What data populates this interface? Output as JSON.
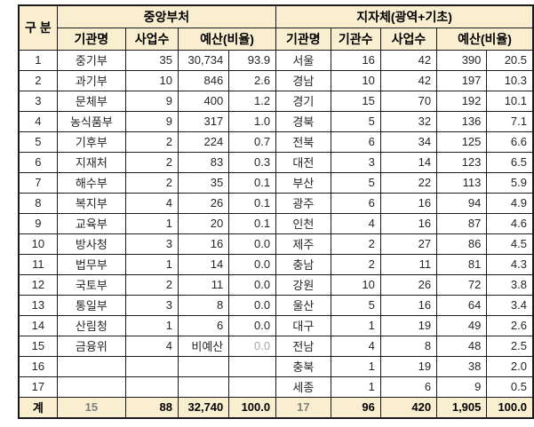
{
  "table": {
    "corner_header": "구 분",
    "group_left": {
      "label": "중앙부처"
    },
    "group_right": {
      "label": "지자체(광역+기초)"
    },
    "sub_header_row": [
      "기관명",
      "사업수",
      "예산(비율)",
      "기관명",
      "기관수",
      "사업수",
      "예산(비율)"
    ],
    "col_align": [
      "center",
      "center",
      "right",
      "right",
      "right",
      "center",
      "right",
      "right",
      "right",
      "right"
    ],
    "rows": [
      [
        "1",
        "중기부",
        "35",
        "30,734",
        "93.9",
        "서울",
        "16",
        "42",
        "390",
        "20.5"
      ],
      [
        "2",
        "과기부",
        "10",
        "846",
        "2.6",
        "경남",
        "10",
        "42",
        "197",
        "10.3"
      ],
      [
        "3",
        "문체부",
        "9",
        "400",
        "1.2",
        "경기",
        "15",
        "70",
        "192",
        "10.1"
      ],
      [
        "4",
        "농식품부",
        "9",
        "317",
        "1.0",
        "경북",
        "5",
        "32",
        "136",
        "7.1"
      ],
      [
        "5",
        "기후부",
        "2",
        "224",
        "0.7",
        "전북",
        "6",
        "34",
        "125",
        "6.6"
      ],
      [
        "6",
        "지재처",
        "2",
        "83",
        "0.3",
        "대전",
        "3",
        "14",
        "123",
        "6.5"
      ],
      [
        "7",
        "해수부",
        "2",
        "35",
        "0.1",
        "부산",
        "5",
        "22",
        "113",
        "5.9"
      ],
      [
        "8",
        "복지부",
        "4",
        "26",
        "0.1",
        "광주",
        "6",
        "16",
        "94",
        "4.9"
      ],
      [
        "9",
        "교육부",
        "1",
        "20",
        "0.1",
        "인천",
        "4",
        "16",
        "87",
        "4.6"
      ],
      [
        "10",
        "방사청",
        "3",
        "16",
        "0.0",
        "제주",
        "2",
        "27",
        "86",
        "4.5"
      ],
      [
        "11",
        "법무부",
        "1",
        "14",
        "0.0",
        "충남",
        "2",
        "11",
        "81",
        "4.3"
      ],
      [
        "12",
        "국토부",
        "2",
        "11",
        "0.0",
        "강원",
        "10",
        "26",
        "72",
        "3.8"
      ],
      [
        "13",
        "통일부",
        "3",
        "8",
        "0.0",
        "울산",
        "5",
        "16",
        "64",
        "3.4"
      ],
      [
        "14",
        "산림청",
        "1",
        "6",
        "0.0",
        "대구",
        "1",
        "19",
        "49",
        "2.6"
      ],
      [
        "15",
        "금융위",
        "4",
        "비예산",
        "0.0",
        "전남",
        "4",
        "8",
        "48",
        "2.5"
      ],
      [
        "16",
        "",
        "",
        "",
        "",
        "충북",
        "1",
        "19",
        "38",
        "2.0"
      ],
      [
        "17",
        "",
        "",
        "",
        "",
        "세종",
        "1",
        "6",
        "9",
        "0.5"
      ]
    ],
    "total_row": [
      "계",
      "15",
      "88",
      "32,740",
      "100.0",
      "17",
      "96",
      "420",
      "1,905",
      "100.0"
    ],
    "muted_cells": [
      {
        "row": 14,
        "col": 4
      }
    ],
    "total_muted_cols": [
      1,
      5
    ]
  },
  "colors": {
    "header_fill": "#F9EED0",
    "border": "#1a1a1a",
    "text": "#262626",
    "muted_text": "#A8A8A8",
    "total_muted_text": "#7F7F7F"
  }
}
